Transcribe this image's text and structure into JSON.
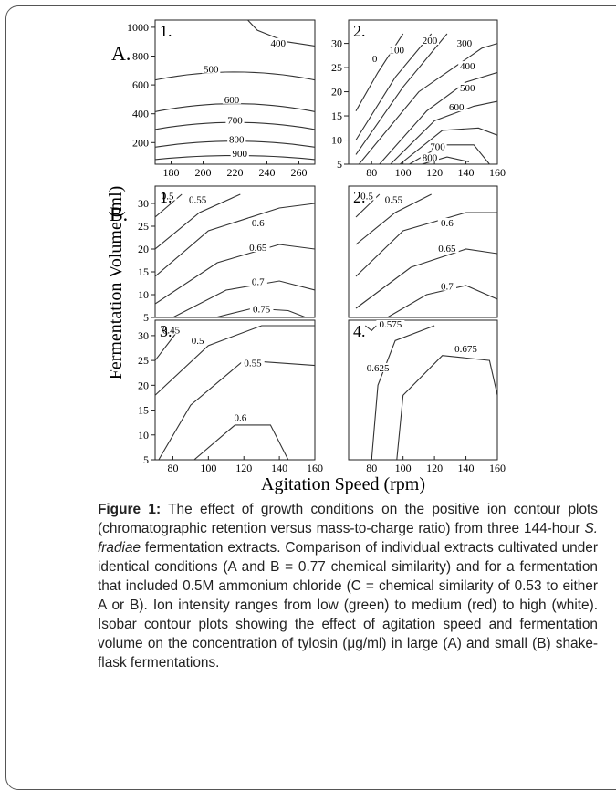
{
  "figure": {
    "section_labels": [
      "A.",
      "B."
    ],
    "y_axis_label": "Fermentation Volume (ml)",
    "x_axis_label": "Agitation Speed (rpm)"
  },
  "caption": {
    "label": "Figure 1:",
    "text_before_italic": " The effect of growth conditions on the positive ion contour plots (chromatographic retention versus mass-to-charge ratio) from three 144-hour ",
    "italic": "S. fradiae",
    "text_after_italic": " fermentation extracts. Comparison of individual extracts cultivated under identical conditions (A and B = 0.77 chemical similarity) and for a fermentation that included 0.5M ammonium chloride (C = chemical similarity of 0.53 to either A or B). Ion intensity ranges from low (green) to medium (red) to high (white). Isobar contour plots showing the effect of agitation speed and fermentation volume on the concentration of tylosin (μg/ml) in large (A) and small (B) shake-flask fermentations."
  },
  "chart_data": [
    {
      "type": "contour",
      "panel": "A.1",
      "title": "1.",
      "xlim": [
        170,
        270
      ],
      "ylim": [
        50,
        1050
      ],
      "x_ticks": [
        180,
        200,
        220,
        240,
        260
      ],
      "y_ticks": [
        200,
        400,
        600,
        800,
        1000
      ],
      "contour_levels": [
        "400",
        "500",
        "600",
        "700",
        "800",
        "900"
      ]
    },
    {
      "type": "contour",
      "panel": "A.2",
      "title": "2.",
      "xlim": [
        70,
        160
      ],
      "ylim": [
        5,
        32
      ],
      "x_ticks": [
        80,
        100,
        120,
        140,
        160
      ],
      "y_ticks": [
        5,
        10,
        15,
        20,
        25,
        30
      ],
      "contour_levels": [
        "0",
        "100",
        "200",
        "300",
        "400",
        "500",
        "600",
        "700",
        "800"
      ]
    },
    {
      "type": "contour",
      "panel": "B.1",
      "title": "1.",
      "xlim": [
        70,
        160
      ],
      "ylim": [
        5,
        32
      ],
      "x_ticks": [],
      "y_ticks": [
        5,
        10,
        15,
        20,
        25,
        30
      ],
      "contour_levels": [
        "0.5",
        "0.55",
        "0.6",
        "0.65",
        "0.7",
        "0.75"
      ]
    },
    {
      "type": "contour",
      "panel": "B.2",
      "title": "2.",
      "xlim": [
        70,
        160
      ],
      "ylim": [
        5,
        32
      ],
      "x_ticks": [],
      "y_ticks": [],
      "contour_levels": [
        "0.5",
        "0.55",
        "0.6",
        "0.65",
        "0.7"
      ]
    },
    {
      "type": "contour",
      "panel": "B.3",
      "title": "3.",
      "xlim": [
        70,
        160
      ],
      "ylim": [
        5,
        32
      ],
      "x_ticks": [
        80,
        100,
        120,
        140,
        160
      ],
      "y_ticks": [
        5,
        10,
        15,
        20,
        25,
        30
      ],
      "contour_levels": [
        "0.45",
        "0.5",
        "0.55",
        "0.6"
      ]
    },
    {
      "type": "contour",
      "panel": "B.4",
      "title": "4.",
      "xlim": [
        70,
        160
      ],
      "ylim": [
        5,
        32
      ],
      "x_ticks": [
        80,
        100,
        120,
        140,
        160
      ],
      "y_ticks": [],
      "contour_levels": [
        "0.575",
        "0.625",
        "0.675"
      ]
    }
  ]
}
